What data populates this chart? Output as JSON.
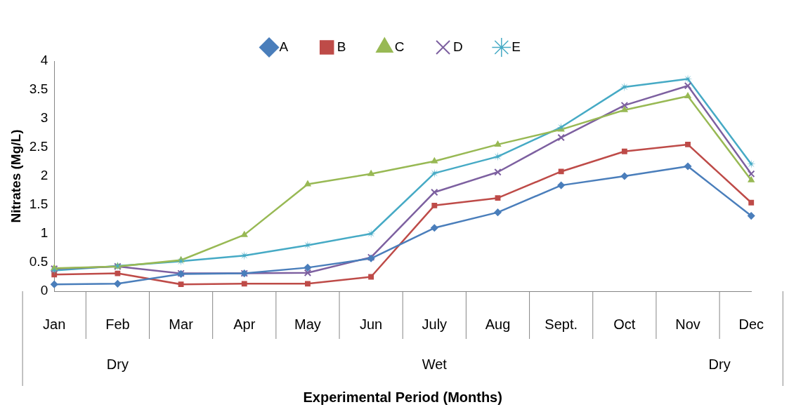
{
  "chart_data": {
    "type": "line",
    "ylabel": "Nitrates (Mg/L)",
    "categories": [
      "Jan",
      "Feb",
      "Mar",
      "Apr",
      "May",
      "Jun",
      "July",
      "Aug",
      "Sept.",
      "Oct",
      "Nov",
      "Dec"
    ],
    "ylim": [
      0,
      4
    ],
    "yticks": [
      0,
      0.5,
      1,
      1.5,
      2,
      2.5,
      3,
      3.5,
      4
    ],
    "legend": "top",
    "line_style": "solid",
    "annotations": [
      "Dry",
      "Wet",
      "Dry",
      "Experimental Period (Months)"
    ],
    "series": [
      {
        "name": "A",
        "color": "#4a7ebb",
        "marker": "diamond",
        "values": [
          0.12,
          0.13,
          0.3,
          0.31,
          0.41,
          0.57,
          1.1,
          1.37,
          1.84,
          2.0,
          2.17,
          1.31
        ]
      },
      {
        "name": "B",
        "color": "#be4b48",
        "marker": "square",
        "values": [
          0.29,
          0.31,
          0.12,
          0.13,
          0.13,
          0.25,
          1.49,
          1.62,
          2.08,
          2.43,
          2.55,
          1.54
        ]
      },
      {
        "name": "C",
        "color": "#98b954",
        "marker": "triangle",
        "values": [
          0.4,
          0.43,
          0.54,
          0.98,
          1.86,
          2.04,
          2.26,
          2.55,
          2.81,
          3.15,
          3.39,
          1.93
        ]
      },
      {
        "name": "D",
        "color": "#7d60a0",
        "marker": "cross",
        "values": [
          0.39,
          0.43,
          0.31,
          0.31,
          0.32,
          0.59,
          1.72,
          2.07,
          2.67,
          3.23,
          3.57,
          2.04
        ]
      },
      {
        "name": "E",
        "color": "#46aac5",
        "marker": "star",
        "values": [
          0.36,
          0.44,
          0.52,
          0.62,
          0.8,
          1.0,
          2.05,
          2.34,
          2.85,
          3.55,
          3.69,
          2.21
        ]
      }
    ]
  }
}
